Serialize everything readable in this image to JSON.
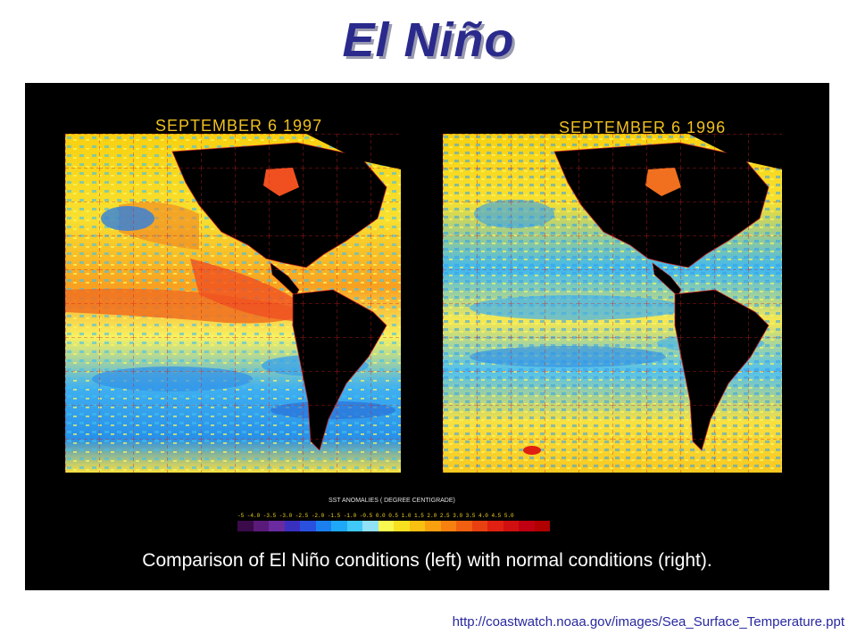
{
  "slide": {
    "title": "El Niño",
    "caption": "Comparison of El Niño conditions (left) with normal conditions (right).",
    "source_url": "http://coastwatch.noaa.gov/images/Sea_Surface_Temperature.ppt"
  },
  "maps": [
    {
      "date_label": "SEPTEMBER 6 1997"
    },
    {
      "date_label": "SEPTEMBER 6 1996"
    }
  ],
  "legend": {
    "title": "SST ANOMALIES ( DEGREE CENTIGRADE)",
    "ticks": "-5 -4.0 -3.5 -3.0 -2.5 -2.0 -1.5 -1.0 -0.5 0.0 0.5 1.0 1.5 2.0 2.5 3.0 3.5 4.0 4.5 5.0",
    "colors": [
      "#3a0a4a",
      "#5a1a7a",
      "#6a2aa0",
      "#3a30c0",
      "#2a50e0",
      "#1a80f0",
      "#20a8f8",
      "#40c8f8",
      "#90e0f8",
      "#f8f850",
      "#f8e020",
      "#f8c010",
      "#f8a010",
      "#f88010",
      "#f06010",
      "#e84010",
      "#e02010",
      "#d01010",
      "#c00010",
      "#b00000"
    ]
  },
  "colors": {
    "title": "#2a2a8c",
    "panel_background": "#000000",
    "caption_text": "#ffffff",
    "date_text": "#f0c020",
    "source_text": "#2828a0"
  }
}
